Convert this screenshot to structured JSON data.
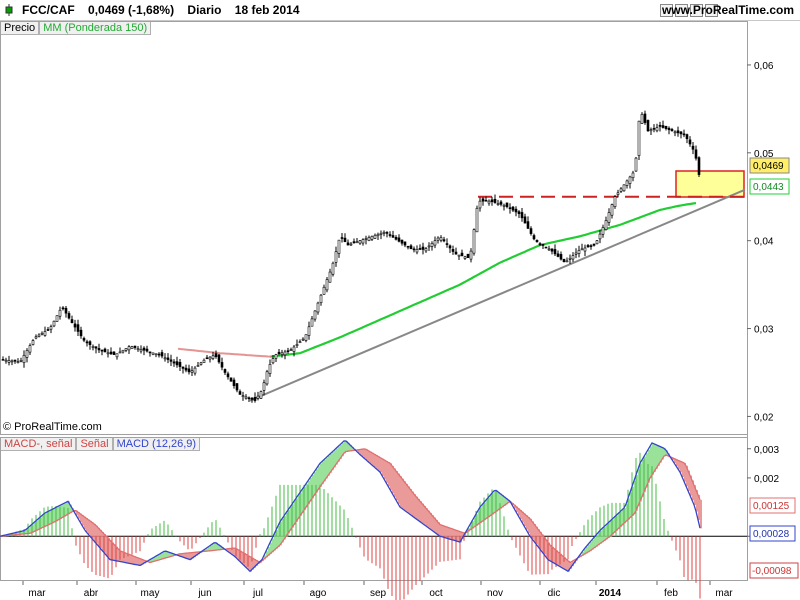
{
  "header": {
    "symbol": "FCC/CAF",
    "quote": "0,0469 (-1,68%)",
    "period": "Diario",
    "date": "18 feb 2014",
    "site": "www.ProRealTime.com"
  },
  "price_panel": {
    "legend_price": "Precio",
    "legend_ma": "MM (Ponderada 150)",
    "copyright": "© ProRealTime.com",
    "y_ticks": [
      "0,06",
      "0,05",
      "0,04",
      "0,03",
      "0,02"
    ],
    "last_price_label": "0,0469",
    "ma_label": "0,0443"
  },
  "macd_panel": {
    "legend_hist": "MACD-, señal",
    "legend_signal": "Señal",
    "legend_macd": "MACD (12,26,9)",
    "y_ticks": [
      "0,003",
      "0,002",
      "0"
    ],
    "signal_label": "0,00125",
    "macd_label": "0,00028",
    "hist_label": "-0,00098"
  },
  "x_axis": {
    "months": [
      "mar",
      "abr",
      "may",
      "jun",
      "jul",
      "ago",
      "sep",
      "oct",
      "nov",
      "dic",
      "2014",
      "feb",
      "mar"
    ]
  },
  "colors": {
    "ma": "#22cc33",
    "trend": "#888888",
    "resistance": "#cc2222",
    "highlight": "#ffff99",
    "macd": "#3344cc",
    "signal": "#e07070"
  },
  "chart_data": {
    "type": "line",
    "price_anchors": [
      [
        0,
        0.0265
      ],
      [
        20,
        0.0262
      ],
      [
        35,
        0.029
      ],
      [
        50,
        0.03
      ],
      [
        62,
        0.0325
      ],
      [
        70,
        0.031
      ],
      [
        85,
        0.0285
      ],
      [
        100,
        0.0275
      ],
      [
        115,
        0.027
      ],
      [
        130,
        0.028
      ],
      [
        145,
        0.0275
      ],
      [
        160,
        0.027
      ],
      [
        175,
        0.026
      ],
      [
        190,
        0.025
      ],
      [
        205,
        0.0265
      ],
      [
        215,
        0.027
      ],
      [
        225,
        0.025
      ],
      [
        240,
        0.0225
      ],
      [
        255,
        0.0218
      ],
      [
        262,
        0.023
      ],
      [
        268,
        0.0255
      ],
      [
        275,
        0.027
      ],
      [
        290,
        0.0275
      ],
      [
        305,
        0.029
      ],
      [
        315,
        0.032
      ],
      [
        325,
        0.035
      ],
      [
        332,
        0.037
      ],
      [
        340,
        0.0405
      ],
      [
        348,
        0.0395
      ],
      [
        360,
        0.04
      ],
      [
        372,
        0.0405
      ],
      [
        385,
        0.041
      ],
      [
        398,
        0.04
      ],
      [
        412,
        0.039
      ],
      [
        425,
        0.039
      ],
      [
        440,
        0.0405
      ],
      [
        455,
        0.0385
      ],
      [
        470,
        0.038
      ],
      [
        478,
        0.0445
      ],
      [
        490,
        0.0445
      ],
      [
        505,
        0.044
      ],
      [
        520,
        0.043
      ],
      [
        535,
        0.04
      ],
      [
        550,
        0.039
      ],
      [
        565,
        0.0375
      ],
      [
        580,
        0.039
      ],
      [
        595,
        0.0395
      ],
      [
        605,
        0.042
      ],
      [
        615,
        0.045
      ],
      [
        625,
        0.0465
      ],
      [
        635,
        0.048
      ],
      [
        640,
        0.055
      ],
      [
        648,
        0.0525
      ],
      [
        660,
        0.053
      ],
      [
        672,
        0.0525
      ],
      [
        685,
        0.052
      ],
      [
        695,
        0.05
      ],
      [
        700,
        0.0469
      ]
    ],
    "ma_anchors": [
      [
        178,
        0.0277
      ],
      [
        220,
        0.0272
      ],
      [
        270,
        0.0268
      ],
      [
        300,
        0.0272
      ],
      [
        340,
        0.029
      ],
      [
        380,
        0.031
      ],
      [
        420,
        0.033
      ],
      [
        460,
        0.035
      ],
      [
        500,
        0.0375
      ],
      [
        540,
        0.0395
      ],
      [
        580,
        0.0405
      ],
      [
        620,
        0.0418
      ],
      [
        660,
        0.0435
      ],
      [
        680,
        0.044
      ],
      [
        697,
        0.0443
      ]
    ],
    "macd_anchors": [
      [
        0,
        0.0
      ],
      [
        25,
        0.0002
      ],
      [
        45,
        0.0008
      ],
      [
        68,
        0.0012
      ],
      [
        85,
        0.0002
      ],
      [
        110,
        -0.0008
      ],
      [
        140,
        -0.001
      ],
      [
        165,
        -0.0005
      ],
      [
        190,
        -0.0008
      ],
      [
        215,
        -0.0002
      ],
      [
        235,
        -0.0007
      ],
      [
        250,
        -0.0012
      ],
      [
        262,
        -0.0008
      ],
      [
        280,
        0.0005
      ],
      [
        300,
        0.0015
      ],
      [
        320,
        0.0025
      ],
      [
        345,
        0.0033
      ],
      [
        360,
        0.0028
      ],
      [
        380,
        0.0022
      ],
      [
        400,
        0.001
      ],
      [
        420,
        0.0005
      ],
      [
        440,
        0.0
      ],
      [
        460,
        -0.0002
      ],
      [
        480,
        0.001
      ],
      [
        495,
        0.0016
      ],
      [
        510,
        0.0012
      ],
      [
        530,
        0.0
      ],
      [
        548,
        -0.0008
      ],
      [
        568,
        -0.0012
      ],
      [
        585,
        -0.0004
      ],
      [
        600,
        0.0002
      ],
      [
        625,
        0.001
      ],
      [
        640,
        0.0025
      ],
      [
        652,
        0.0032
      ],
      [
        665,
        0.003
      ],
      [
        680,
        0.0022
      ],
      [
        695,
        0.001
      ],
      [
        700,
        0.00028
      ]
    ],
    "signal_anchors": [
      [
        0,
        0.0
      ],
      [
        30,
        0.0001
      ],
      [
        55,
        0.0005
      ],
      [
        75,
        0.0009
      ],
      [
        95,
        0.0004
      ],
      [
        120,
        -0.0005
      ],
      [
        150,
        -0.0009
      ],
      [
        180,
        -0.0006
      ],
      [
        210,
        -0.0005
      ],
      [
        235,
        -0.0004
      ],
      [
        260,
        -0.0009
      ],
      [
        280,
        -0.0003
      ],
      [
        300,
        0.0007
      ],
      [
        320,
        0.0017
      ],
      [
        345,
        0.0029
      ],
      [
        365,
        0.003
      ],
      [
        390,
        0.0025
      ],
      [
        415,
        0.0014
      ],
      [
        440,
        0.0004
      ],
      [
        465,
        0.0001
      ],
      [
        490,
        0.0007
      ],
      [
        510,
        0.0012
      ],
      [
        530,
        0.0006
      ],
      [
        550,
        -0.0003
      ],
      [
        570,
        -0.0009
      ],
      [
        590,
        -0.0005
      ],
      [
        610,
        0.0
      ],
      [
        635,
        0.0008
      ],
      [
        650,
        0.002
      ],
      [
        665,
        0.0028
      ],
      [
        685,
        0.0025
      ],
      [
        700,
        0.00125
      ]
    ],
    "price_ylim": [
      0.018,
      0.065
    ],
    "macd_ylim": [
      -0.0015,
      0.0033
    ],
    "trendline": [
      [
        250,
        0.0218
      ],
      [
        745,
        0.0458
      ]
    ],
    "resistance_line": [
      [
        478,
        0.045
      ],
      [
        745,
        0.045
      ]
    ]
  }
}
